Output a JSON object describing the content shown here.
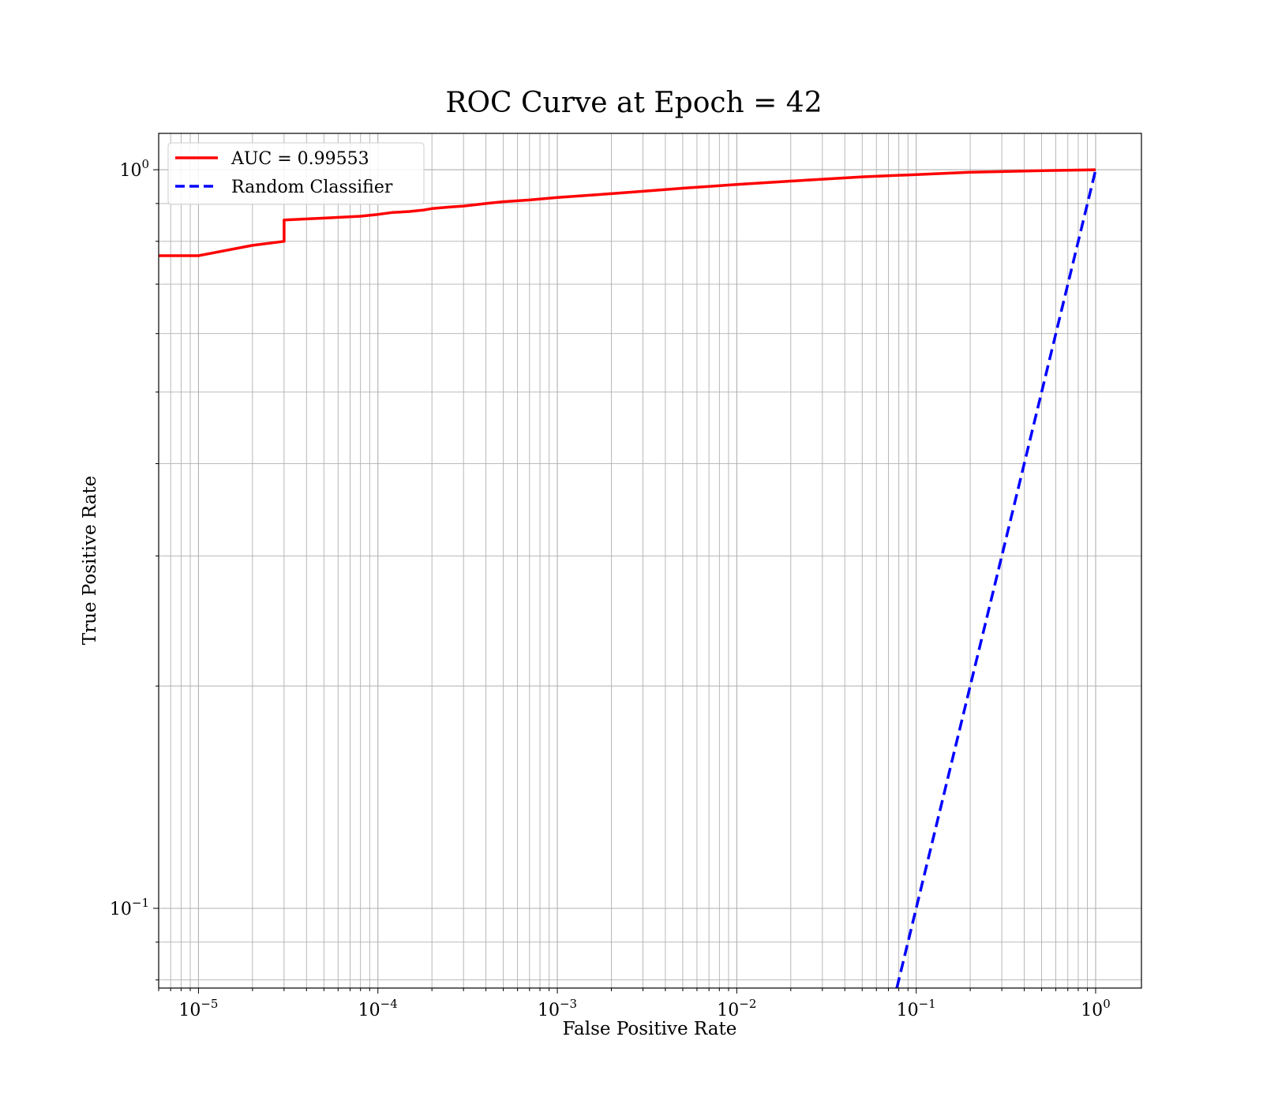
{
  "chart_data": {
    "type": "line",
    "title": "ROC Curve at Epoch = 42",
    "xlabel": "False Positive Rate",
    "ylabel": "True Positive Rate",
    "xscale": "log",
    "yscale": "log",
    "xlim": [
      6e-06,
      1.8
    ],
    "ylim": [
      0.078,
      1.12
    ],
    "grid": "both major and minor",
    "legend_position": "top-left",
    "x_ticks": [
      {
        "value": 1e-05,
        "base": "10",
        "exp": "−5"
      },
      {
        "value": 0.0001,
        "base": "10",
        "exp": "−4"
      },
      {
        "value": 0.001,
        "base": "10",
        "exp": "−3"
      },
      {
        "value": 0.01,
        "base": "10",
        "exp": "−2"
      },
      {
        "value": 0.1,
        "base": "10",
        "exp": "−1"
      },
      {
        "value": 1,
        "base": "10",
        "exp": "0"
      }
    ],
    "y_ticks": [
      {
        "value": 0.1,
        "base": "10",
        "exp": "−1"
      },
      {
        "value": 1,
        "base": "10",
        "exp": "0"
      }
    ],
    "series": [
      {
        "name": "AUC = 0.99553",
        "color": "#ff0000",
        "style": "solid",
        "x": [
          6e-06,
          1e-05,
          2e-05,
          3e-05,
          3e-05,
          5e-05,
          8e-05,
          0.0001,
          0.00012,
          0.00015,
          0.00018,
          0.0002,
          0.00025,
          0.0003,
          0.0004,
          0.0005,
          0.0007,
          0.001,
          0.002,
          0.003,
          0.005,
          0.01,
          0.02,
          0.05,
          0.1,
          0.2,
          0.5,
          1.0
        ],
        "y": [
          0.765,
          0.765,
          0.79,
          0.8,
          0.855,
          0.86,
          0.865,
          0.87,
          0.875,
          0.878,
          0.882,
          0.886,
          0.89,
          0.893,
          0.9,
          0.905,
          0.91,
          0.917,
          0.928,
          0.935,
          0.944,
          0.955,
          0.965,
          0.978,
          0.985,
          0.992,
          0.997,
          1.0
        ]
      },
      {
        "name": "Random Classifier",
        "color": "#0000ff",
        "style": "dashed",
        "x": [
          0.078,
          1.0
        ],
        "y": [
          0.078,
          1.0
        ]
      }
    ]
  }
}
